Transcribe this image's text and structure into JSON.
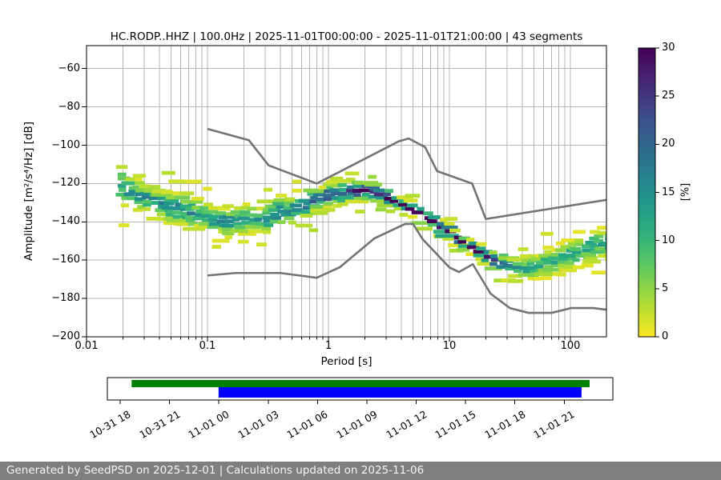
{
  "figure": {
    "status_bar": {
      "text": "Generated by SeedPSD on 2025-12-01 | Calculations updated on 2025-11-06",
      "bg": "#7f7f7f",
      "fg": "#f5f5f5"
    }
  },
  "chart_data": {
    "type": "heatmap",
    "title": "HC.RODP..HHZ | 100.0Hz | 2025-11-01T00:00:00 - 2025-11-01T21:00:00 | 43 segments",
    "xlabel": "Period [s]",
    "ylabel": "Amplitude [m²/s⁴/Hz] [dB]",
    "xscale": "log",
    "xlim": [
      0.01,
      200
    ],
    "ylim": [
      -200,
      -48
    ],
    "grid": true,
    "grid_color": "#b6b6b6",
    "xticks": {
      "values": [
        0.01,
        0.1,
        1,
        10,
        100
      ],
      "labels": [
        "0.01",
        "0.1",
        "1",
        "10",
        "100"
      ]
    },
    "yticks": {
      "values": [
        -60,
        -80,
        -100,
        -120,
        -140,
        -160,
        -180,
        -200
      ],
      "labels": [
        "−60",
        "−80",
        "−100",
        "−120",
        "−140",
        "−160",
        "−180",
        "−200"
      ]
    },
    "colorbar": {
      "label": "[%]",
      "ticks": [
        0,
        5,
        10,
        15,
        20,
        25,
        30
      ],
      "min": 0,
      "max": 30,
      "cmap": "viridis_r"
    },
    "noise_models": {
      "color": "#737373",
      "nhnm": [
        [
          0.1,
          -91.5
        ],
        [
          0.22,
          -97.4
        ],
        [
          0.32,
          -110.5
        ],
        [
          0.8,
          -120
        ],
        [
          3.8,
          -98
        ],
        [
          4.6,
          -96.5
        ],
        [
          6.3,
          -101
        ],
        [
          7.9,
          -113.5
        ],
        [
          15.4,
          -120
        ],
        [
          20,
          -138.5
        ],
        [
          200,
          -128.5
        ]
      ],
      "nlnm": [
        [
          0.1,
          -168
        ],
        [
          0.17,
          -166.7
        ],
        [
          0.4,
          -166.7
        ],
        [
          0.8,
          -169.2
        ],
        [
          1.24,
          -163.7
        ],
        [
          2.4,
          -148.6
        ],
        [
          4.3,
          -141.1
        ],
        [
          5,
          -141.1
        ],
        [
          6,
          -149
        ],
        [
          10,
          -163.8
        ],
        [
          12,
          -166.2
        ],
        [
          15.6,
          -162.1
        ],
        [
          21.9,
          -177.5
        ],
        [
          31.6,
          -185
        ],
        [
          45,
          -187.5
        ],
        [
          70,
          -187.5
        ],
        [
          101,
          -185
        ],
        [
          154,
          -185
        ],
        [
          200,
          -185.9
        ]
      ]
    },
    "ppsd_band": {
      "columns": [
        "period_s",
        "mode_db",
        "halfwidth_db",
        "peak_percent"
      ],
      "points": [
        [
          0.019,
          -120.5,
          8,
          14
        ],
        [
          0.03,
          -126.5,
          8,
          15
        ],
        [
          0.05,
          -132,
          7,
          16
        ],
        [
          0.08,
          -136,
          7,
          15
        ],
        [
          0.12,
          -138.5,
          7,
          14
        ],
        [
          0.18,
          -139.5,
          7,
          14
        ],
        [
          0.28,
          -138,
          7,
          15
        ],
        [
          0.45,
          -134.5,
          7,
          16
        ],
        [
          0.7,
          -130,
          6,
          18
        ],
        [
          1,
          -126,
          5.5,
          21
        ],
        [
          1.4,
          -124,
          5,
          24
        ],
        [
          2,
          -124,
          4.5,
          26
        ],
        [
          2.8,
          -126.5,
          4,
          27
        ],
        [
          4,
          -130.5,
          3.5,
          28
        ],
        [
          5.5,
          -135,
          3,
          30
        ],
        [
          8,
          -141.5,
          3,
          30
        ],
        [
          11,
          -147.5,
          2.8,
          30
        ],
        [
          16,
          -154,
          2.8,
          30
        ],
        [
          22,
          -159,
          3.2,
          28
        ],
        [
          32,
          -163,
          4.5,
          18
        ],
        [
          45,
          -164.5,
          5.5,
          13
        ],
        [
          63,
          -162,
          6,
          11
        ],
        [
          90,
          -158.5,
          6.5,
          11
        ],
        [
          130,
          -155,
          7,
          12
        ],
        [
          185,
          -151.5,
          7.5,
          13
        ]
      ]
    },
    "timeline": {
      "tick_labels": [
        "10-31 18",
        "10-31 21",
        "11-01 00",
        "11-01 03",
        "11-01 06",
        "11-01 09",
        "11-01 12",
        "11-01 15",
        "11-01 18",
        "11-01 21"
      ],
      "first_tick_frac": 0.0254,
      "tick_step_frac": 0.0976,
      "bars": [
        {
          "name": "availability",
          "color": "#008000",
          "start_frac": 0.048,
          "end_frac": 0.954
        },
        {
          "name": "coverage",
          "color": "#0000ff",
          "start_frac": 0.22,
          "end_frac": 0.938
        }
      ]
    }
  }
}
